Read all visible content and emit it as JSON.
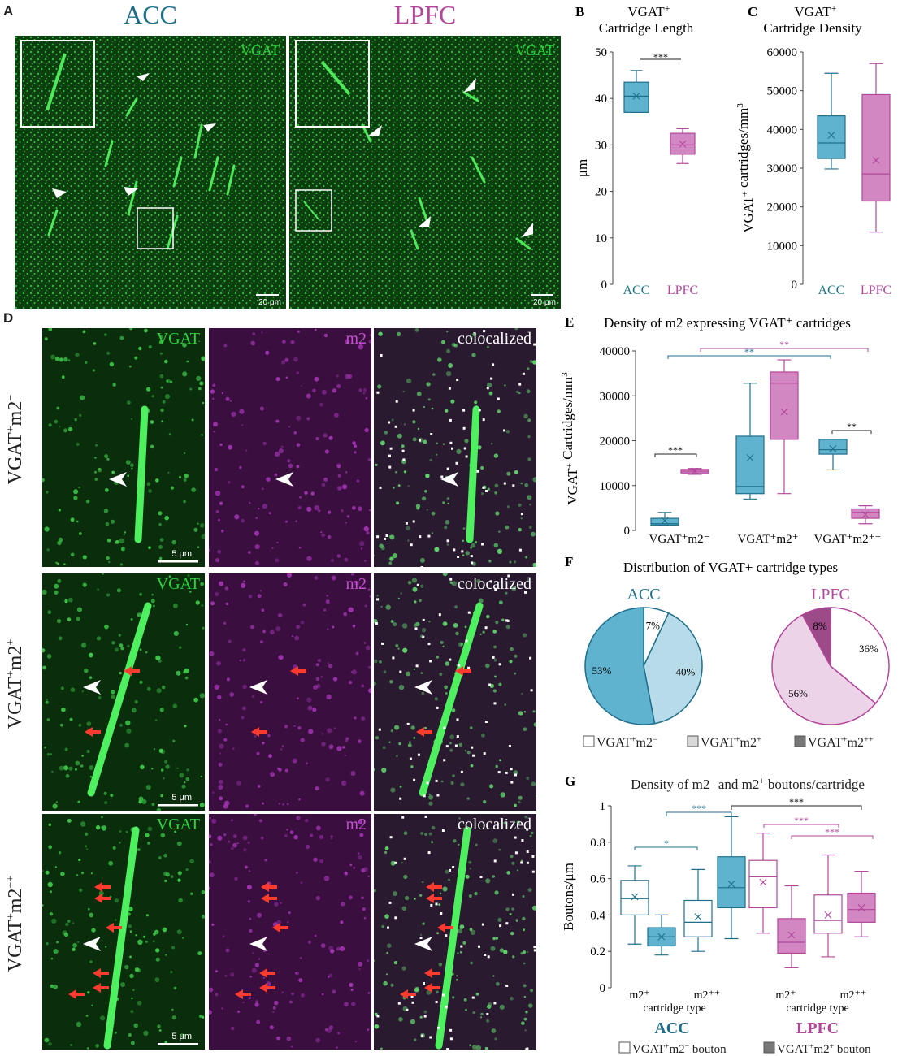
{
  "colors": {
    "acc": "#1f6f8b",
    "lpfc": "#b2479b",
    "acc_fill": "#5fb3cf",
    "lpfc_fill": "#d286c2",
    "acc_light": "#b7dbe9",
    "lpfc_light": "#edd3e8",
    "lpfc_dark": "#9c4a88",
    "vgat_green": "#2bd43b",
    "m2_magenta": "#c54fd0",
    "arrow_red": "#ff3b30"
  },
  "panelA": {
    "letter": "A",
    "titles": [
      "ACC",
      "LPFC"
    ],
    "channel_label": "VGAT",
    "scalebar": "20 μm"
  },
  "panelD": {
    "letter": "D",
    "channels": [
      "VGAT",
      "m2",
      "colocalized"
    ],
    "rows": [
      {
        "label": "VGAT",
        "sup": "+",
        "label2": "m2",
        "sup2": "−"
      },
      {
        "label": "VGAT",
        "sup": "+",
        "label2": "m2",
        "sup2": "+"
      },
      {
        "label": "VGAT",
        "sup": "+",
        "label2": "m2",
        "sup2": "++"
      }
    ],
    "scalebar": "5 μm"
  },
  "chart_data": [
    {
      "panel": "B",
      "type": "box",
      "title": "VGAT⁺ Cartridge Length",
      "ylabel": "μm",
      "ylim": [
        0,
        50
      ],
      "yticks": [
        0,
        10,
        20,
        30,
        40,
        50
      ],
      "categories": [
        "ACC",
        "LPFC"
      ],
      "boxes": [
        {
          "name": "ACC",
          "min": 37,
          "q1": 37,
          "median": 40.5,
          "q3": 43.5,
          "max": 46,
          "mean": 40.5
        },
        {
          "name": "LPFC",
          "min": 26,
          "q1": 28,
          "median": 30,
          "q3": 32.5,
          "max": 33.5,
          "mean": 30.2
        }
      ],
      "significance": [
        {
          "label": "***",
          "from": "ACC",
          "to": "LPFC"
        }
      ]
    },
    {
      "panel": "C",
      "type": "box",
      "title": "VGAT⁺ Cartridge Density",
      "ylabel": "VGAT⁺ cartridges/mm³",
      "ylim": [
        0,
        60000
      ],
      "yticks": [
        0,
        10000,
        20000,
        30000,
        40000,
        50000,
        60000
      ],
      "categories": [
        "ACC",
        "LPFC"
      ],
      "boxes": [
        {
          "name": "ACC",
          "min": 29800,
          "q1": 32500,
          "median": 36500,
          "q3": 43500,
          "max": 54500,
          "mean": 38500
        },
        {
          "name": "LPFC",
          "min": 13500,
          "q1": 21500,
          "median": 28500,
          "q3": 49000,
          "max": 57000,
          "mean": 32000
        }
      ]
    },
    {
      "panel": "E",
      "type": "box",
      "title": "Density of m2 expressing VGAT⁺ cartridges",
      "ylabel": "VGAT⁺ Cartridges/mm³",
      "ylim": [
        0,
        40000
      ],
      "yticks": [
        0,
        10000,
        20000,
        30000,
        40000
      ],
      "categories": [
        "VGAT⁺m2⁻",
        "VGAT⁺m2⁺",
        "VGAT⁺m2⁺⁺"
      ],
      "series": [
        {
          "name": "ACC",
          "boxes": [
            {
              "min": 1200,
              "q1": 1200,
              "median": 1500,
              "q3": 2700,
              "max": 4000,
              "mean": 2200
            },
            {
              "min": 7000,
              "q1": 8200,
              "median": 9800,
              "q3": 21000,
              "max": 32800,
              "mean": 16200
            },
            {
              "min": 13500,
              "q1": 17000,
              "median": 18000,
              "q3": 20300,
              "max": 20300,
              "mean": 18200
            }
          ]
        },
        {
          "name": "LPFC",
          "boxes": [
            {
              "min": 12500,
              "q1": 12800,
              "median": 13200,
              "q3": 13600,
              "max": 13800,
              "mean": 13200
            },
            {
              "min": 8200,
              "q1": 20300,
              "median": 32800,
              "q3": 35300,
              "max": 38000,
              "mean": 26400
            },
            {
              "min": 1500,
              "q1": 2700,
              "median": 4000,
              "q3": 4800,
              "max": 5500,
              "mean": 3500
            }
          ]
        }
      ],
      "significance": [
        {
          "label": "**",
          "color": "acc"
        },
        {
          "label": "**",
          "color": "lpfc"
        },
        {
          "label": "***",
          "color": "black"
        },
        {
          "label": "**",
          "color": "black"
        }
      ]
    },
    {
      "panel": "F",
      "type": "pie",
      "title": "Distribution of VGAT⁺ cartridge types",
      "pies": [
        {
          "name": "ACC",
          "slices": [
            {
              "label": "VGAT⁺m2⁻",
              "value": 7,
              "text": "7%"
            },
            {
              "label": "VGAT⁺m2⁺",
              "value": 40,
              "text": "40%"
            },
            {
              "label": "VGAT⁺m2⁺⁺",
              "value": 53,
              "text": "53%"
            }
          ]
        },
        {
          "name": "LPFC",
          "slices": [
            {
              "label": "VGAT⁺m2⁻",
              "value": 36,
              "text": "36%"
            },
            {
              "label": "VGAT⁺m2⁺",
              "value": 56,
              "text": "56%"
            },
            {
              "label": "VGAT⁺m2⁺⁺",
              "value": 8,
              "text": "8%"
            }
          ]
        }
      ],
      "legend": [
        {
          "label": "VGAT",
          "sup": "+",
          "label2": "m2",
          "sup2": "−"
        },
        {
          "label": "VGAT",
          "sup": "+",
          "label2": "m2",
          "sup2": "+"
        },
        {
          "label": "VGAT",
          "sup": "+",
          "label2": "m2",
          "sup2": "++"
        }
      ]
    },
    {
      "panel": "G",
      "type": "box",
      "title": "Density of m2⁻ and m2⁺ boutons/cartridge",
      "ylabel": "Boutons/μm",
      "xlabel": "cartridge type",
      "ylim": [
        0,
        1
      ],
      "yticks": [
        "0",
        "0.2",
        "0.4",
        "0.6",
        "0.8",
        "1"
      ],
      "tick_labels": [
        "m2⁺",
        "m2⁺⁺",
        "m2⁺",
        "m2⁺⁺"
      ],
      "groups": [
        {
          "name": "ACC",
          "boxes": [
            {
              "bouton": "m2⁻",
              "cartridge": "m2⁺",
              "min": 0.24,
              "q1": 0.4,
              "median": 0.49,
              "q3": 0.59,
              "max": 0.67,
              "mean": 0.5
            },
            {
              "bouton": "m2⁺",
              "cartridge": "m2⁺",
              "min": 0.18,
              "q1": 0.23,
              "median": 0.28,
              "q3": 0.33,
              "max": 0.4,
              "mean": 0.28
            },
            {
              "bouton": "m2⁻",
              "cartridge": "m2⁺⁺",
              "min": 0.2,
              "q1": 0.28,
              "median": 0.36,
              "q3": 0.48,
              "max": 0.65,
              "mean": 0.39
            },
            {
              "bouton": "m2⁺",
              "cartridge": "m2⁺⁺",
              "min": 0.27,
              "q1": 0.44,
              "median": 0.55,
              "q3": 0.72,
              "max": 0.94,
              "mean": 0.57
            }
          ]
        },
        {
          "name": "LPFC",
          "boxes": [
            {
              "bouton": "m2⁻",
              "cartridge": "m2⁺",
              "min": 0.3,
              "q1": 0.44,
              "median": 0.61,
              "q3": 0.7,
              "max": 0.85,
              "mean": 0.58
            },
            {
              "bouton": "m2⁺",
              "cartridge": "m2⁺",
              "min": 0.11,
              "q1": 0.19,
              "median": 0.25,
              "q3": 0.38,
              "max": 0.56,
              "mean": 0.29
            },
            {
              "bouton": "m2⁻",
              "cartridge": "m2⁺⁺",
              "min": 0.17,
              "q1": 0.3,
              "median": 0.37,
              "q3": 0.51,
              "max": 0.73,
              "mean": 0.4
            },
            {
              "bouton": "m2⁺",
              "cartridge": "m2⁺⁺",
              "min": 0.28,
              "q1": 0.36,
              "median": 0.43,
              "q3": 0.52,
              "max": 0.64,
              "mean": 0.44
            }
          ]
        }
      ],
      "significance": [
        "*",
        "***",
        "***",
        "***",
        "***"
      ],
      "legend": [
        {
          "label": "VGAT",
          "sup": "+",
          "label2": "m2",
          "sup2": "−",
          "suffix": " bouton"
        },
        {
          "label": "VGAT",
          "sup": "+",
          "label2": "m2",
          "sup2": "+",
          "suffix": " bouton"
        }
      ]
    }
  ]
}
